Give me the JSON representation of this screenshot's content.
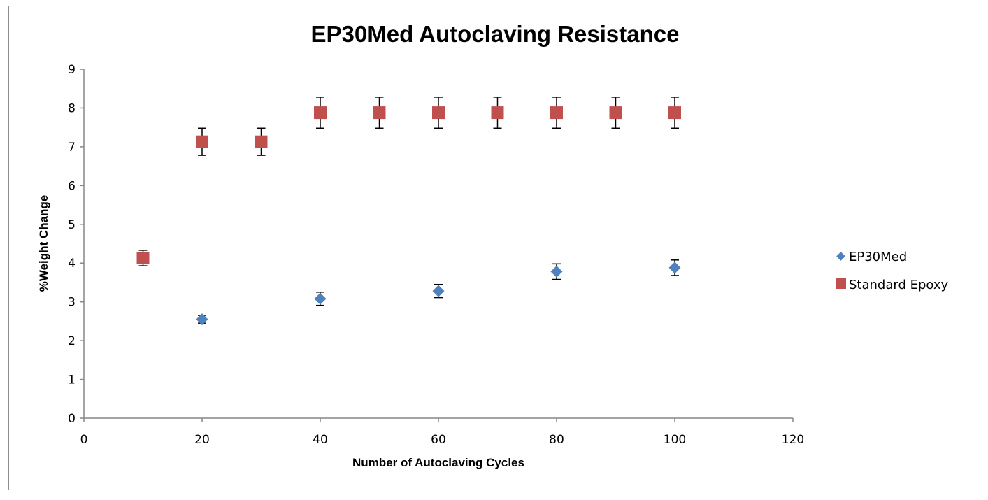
{
  "chart_data": {
    "type": "scatter",
    "title": "EP30Med Autoclaving Resistance",
    "xlabel": "Number of Autoclaving  Cycles",
    "ylabel": "%Weight Change",
    "xlim": [
      0,
      120
    ],
    "ylim": [
      0,
      9
    ],
    "x_ticks": [
      0,
      20,
      40,
      60,
      80,
      100,
      120
    ],
    "y_ticks": [
      0,
      1,
      2,
      3,
      4,
      5,
      6,
      7,
      8,
      9
    ],
    "grid": false,
    "legend_position": "right",
    "series": [
      {
        "name": "EP30Med",
        "marker": "diamond",
        "color": "#4f81bd",
        "x": [
          20,
          40,
          60,
          80,
          100
        ],
        "y": [
          2.55,
          3.08,
          3.28,
          3.78,
          3.88
        ],
        "error": [
          0.1,
          0.17,
          0.17,
          0.2,
          0.2
        ]
      },
      {
        "name": "Standard Epoxy",
        "marker": "square",
        "color": "#c0504d",
        "x": [
          10,
          20,
          30,
          40,
          50,
          60,
          70,
          80,
          90,
          100
        ],
        "y": [
          4.13,
          7.13,
          7.13,
          7.88,
          7.88,
          7.88,
          7.88,
          7.88,
          7.88,
          7.88
        ],
        "error": [
          0.2,
          0.35,
          0.35,
          0.4,
          0.4,
          0.4,
          0.4,
          0.4,
          0.4,
          0.4
        ]
      }
    ]
  }
}
